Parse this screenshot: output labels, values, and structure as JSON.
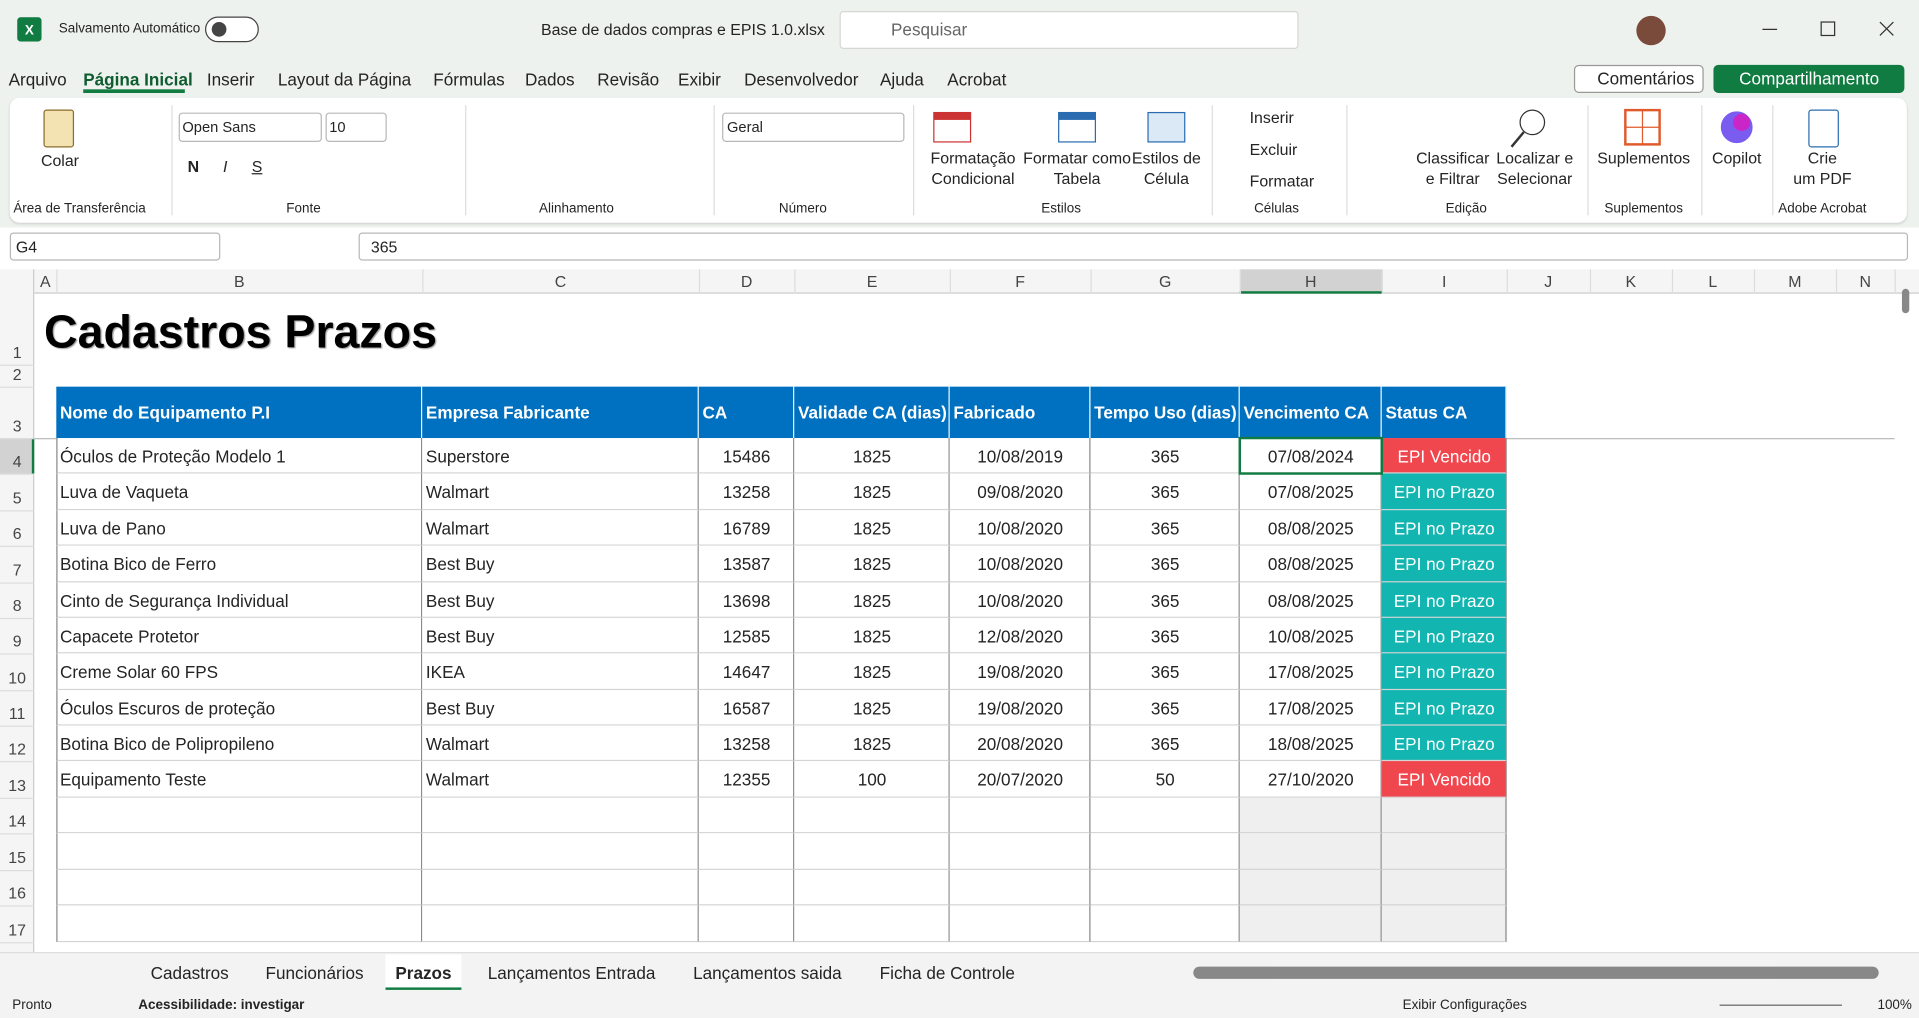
{
  "title_bar": {
    "autosave": "Salvamento Automático",
    "file_name": "Base de dados compras e EPIS 1.0.xlsx",
    "search": "Pesquisar"
  },
  "menu": {
    "tabs": [
      "Arquivo",
      "Página Inicial",
      "Inserir",
      "Layout da Página",
      "Fórmulas",
      "Dados",
      "Revisão",
      "Exibir",
      "Desenvolvedor",
      "Ajuda",
      "Acrobat"
    ],
    "active": 1,
    "comments": "Comentários",
    "share": "Compartilhamento"
  },
  "ribbon": {
    "clipboard": {
      "paste": "Colar",
      "label": "Área de Transferência"
    },
    "font": {
      "name": "Open Sans",
      "size": "10",
      "bold": "N",
      "italic": "I",
      "underline": "S",
      "label": "Fonte"
    },
    "alignment": {
      "label": "Alinhamento"
    },
    "number": {
      "format": "Geral",
      "label": "Número"
    },
    "styles": {
      "buttons": [
        [
          "Formatação",
          "Condicional"
        ],
        [
          "Formatar como",
          "Tabela"
        ],
        [
          "Estilos de",
          "Célula"
        ]
      ],
      "label": "Estilos"
    },
    "cells": {
      "buttons": [
        "Inserir",
        "Excluir",
        "Formatar"
      ],
      "label": "Células"
    },
    "editing": {
      "buttons": [
        [
          "Classificar",
          "e Filtrar"
        ],
        [
          "Localizar e",
          "Selecionar"
        ]
      ],
      "label": "Edição"
    },
    "addins": {
      "button": "Suplementos",
      "label": "Suplementos"
    },
    "copilot": "Copilot",
    "acrobat": {
      "button": [
        "Crie",
        "um PDF"
      ],
      "label": "Adobe Acrobat"
    }
  },
  "formula_bar": {
    "name_box": "G4",
    "formula": 365
  },
  "sheet": {
    "columns": [
      "A",
      "B",
      "C",
      "D",
      "E",
      "F",
      "G",
      "H",
      "I",
      "J",
      "K",
      "L",
      "M",
      "N"
    ],
    "rows": [
      1,
      2,
      3,
      4,
      5,
      6,
      7,
      8,
      9,
      10,
      11,
      12,
      13,
      14,
      15,
      16,
      17
    ],
    "title": "Cadastros Prazos",
    "header_color": "#0070c0",
    "headers": [
      "Nome do Equipamento P.I",
      "Empresa Fabricante",
      "CA",
      "Validade CA (dias)",
      "Fabricado",
      "Tempo Uso (dias)",
      "Vencimento CA",
      "Status CA"
    ],
    "data": [
      [
        "Óculos de Proteção Modelo 1",
        "Superstore",
        15486,
        1825,
        "10/08/2019",
        365,
        "07/08/2024",
        "EPI Vencido"
      ],
      [
        "Luva de Vaqueta",
        "Walmart",
        13258,
        1825,
        "09/08/2020",
        365,
        "07/08/2025",
        "EPI no Prazo"
      ],
      [
        "Luva de Pano",
        "Walmart",
        16789,
        1825,
        "10/08/2020",
        365,
        "08/08/2025",
        "EPI no Prazo"
      ],
      [
        "Botina Bico de Ferro",
        "Best Buy",
        13587,
        1825,
        "10/08/2020",
        365,
        "08/08/2025",
        "EPI no Prazo"
      ],
      [
        "Cinto de Segurança Individual",
        "Best Buy",
        13698,
        1825,
        "10/08/2020",
        365,
        "08/08/2025",
        "EPI no Prazo"
      ],
      [
        "Capacete Protetor",
        "Best Buy",
        12585,
        1825,
        "12/08/2020",
        365,
        "10/08/2025",
        "EPI no Prazo"
      ],
      [
        "Creme Solar 60 FPS",
        "IKEA",
        14647,
        1825,
        "19/08/2020",
        365,
        "17/08/2025",
        "EPI no Prazo"
      ],
      [
        "Óculos Escuros de proteção",
        "Best Buy",
        16587,
        1825,
        "19/08/2020",
        365,
        "17/08/2025",
        "EPI no Prazo"
      ],
      [
        "Botina Bico de Polipropileno",
        "Walmart",
        13258,
        1825,
        "20/08/2020",
        365,
        "18/08/2025",
        "EPI no Prazo"
      ],
      [
        "Equipamento Teste",
        "Walmart",
        12355,
        100,
        "20/07/2020",
        50,
        "27/10/2020",
        "EPI Vencido"
      ]
    ],
    "status_colors": [
      "#f0474f",
      "#13b5b1",
      "#13b5b1",
      "#13b5b1",
      "#13b5b1",
      "#13b5b1",
      "#13b5b1",
      "#13b5b1",
      "#13b5b1",
      "#f0474f"
    ]
  },
  "sheet_tabs": {
    "tabs": [
      "Cadastros",
      "Funcionários",
      "Prazos",
      "Lançamentos Entrada",
      "Lançamentos saida",
      "Ficha de Controle"
    ],
    "active": 2
  },
  "status_bar": {
    "ready": "Pronto",
    "accessibility": "Acessibilidade: investigar",
    "display_settings": "Exibir Configurações",
    "zoom": "100%"
  }
}
